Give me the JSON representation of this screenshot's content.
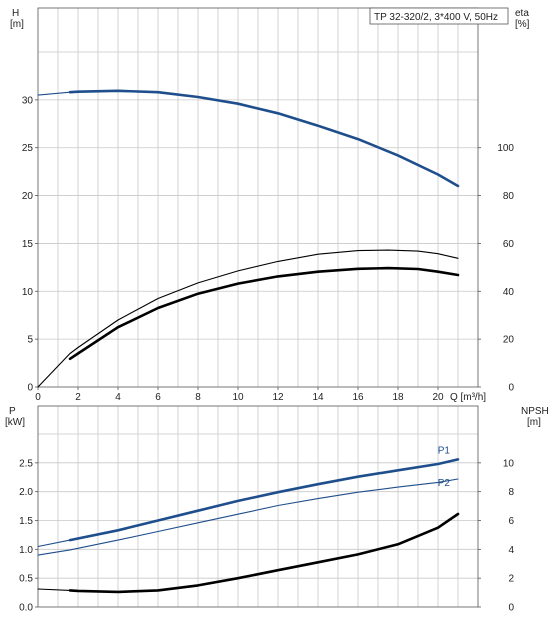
{
  "chart_data": [
    {
      "type": "line",
      "title": "TP 32-320/2, 3*400 V, 50Hz",
      "xlabel": "Q [m³/h]",
      "xlim": [
        0,
        22
      ],
      "x_ticks": [
        "0",
        "2",
        "4",
        "6",
        "8",
        "10",
        "12",
        "14",
        "16",
        "18",
        "20"
      ],
      "ylabel_left": [
        "H",
        "[m]"
      ],
      "ylim_left": [
        0,
        35
      ],
      "y_ticks_left": [
        "0",
        "5",
        "10",
        "15",
        "20",
        "25",
        "30"
      ],
      "ylabel_right": [
        "eta",
        "[%]"
      ],
      "ylim_right": [
        0,
        140
      ],
      "y_ticks_right": [
        "0",
        "20",
        "40",
        "60",
        "80",
        "100"
      ],
      "grid": true,
      "series": [
        {
          "axis": "left",
          "color": "#1f4e8c",
          "style": "thin",
          "x": [
            0,
            1.6
          ],
          "y": [
            30.5,
            30.8
          ]
        },
        {
          "axis": "left",
          "color": "#1f4e8c",
          "style": "thick",
          "x": [
            1.6,
            2,
            4,
            6,
            8,
            10,
            12,
            14,
            16,
            18,
            20,
            21
          ],
          "y": [
            30.8,
            30.85,
            30.95,
            30.8,
            30.3,
            29.6,
            28.6,
            27.3,
            25.9,
            24.2,
            22.2,
            21.0
          ]
        },
        {
          "axis": "right",
          "color": "#000000",
          "style": "thin",
          "x": [
            0,
            1.6,
            2,
            4,
            6,
            8,
            10,
            12,
            14,
            16,
            17.5,
            19,
            20,
            21
          ],
          "y": [
            0,
            14,
            16.5,
            28,
            37,
            43.5,
            48.5,
            52.5,
            55.5,
            57,
            57.2,
            56.8,
            55.7,
            53.8
          ]
        },
        {
          "axis": "right",
          "color": "#000000",
          "style": "thick",
          "x": [
            1.6,
            2,
            4,
            6,
            8,
            10,
            12,
            14,
            16,
            17.5,
            19,
            20,
            21
          ],
          "y": [
            11.8,
            14,
            25,
            33,
            39,
            43.2,
            46.2,
            48.2,
            49.4,
            49.7,
            49.3,
            48.2,
            46.8
          ]
        }
      ]
    },
    {
      "type": "line",
      "xlim": [
        0,
        22
      ],
      "ylabel_left": [
        "P",
        "[kW]"
      ],
      "ylim_left": [
        0,
        3.0
      ],
      "y_ticks_left": [
        "0.0",
        "0.5",
        "1.0",
        "1.5",
        "2.0",
        "2.5"
      ],
      "ylabel_right": [
        "NPSH",
        "[m]"
      ],
      "ylim_right": [
        0,
        12
      ],
      "y_ticks_right": [
        "0",
        "2",
        "4",
        "6",
        "8",
        "10"
      ],
      "grid": true,
      "series": [
        {
          "name": "P1",
          "axis": "left",
          "color": "#1f4e8c",
          "style": "thin",
          "x": [
            0,
            1.6
          ],
          "y": [
            1.05,
            1.16
          ]
        },
        {
          "name": "P1",
          "axis": "left",
          "color": "#1f4e8c",
          "style": "thick",
          "x": [
            1.6,
            4,
            6,
            8,
            10,
            12,
            14,
            16,
            18,
            20,
            21
          ],
          "y": [
            1.16,
            1.33,
            1.5,
            1.67,
            1.84,
            1.99,
            2.13,
            2.26,
            2.37,
            2.48,
            2.56
          ]
        },
        {
          "name": "P2",
          "axis": "left",
          "color": "#1f4e8c",
          "style": "thin",
          "x": [
            0,
            1.6,
            4,
            6,
            8,
            10,
            12,
            14,
            16,
            18,
            20,
            21
          ],
          "y": [
            0.9,
            0.99,
            1.16,
            1.31,
            1.46,
            1.61,
            1.76,
            1.88,
            1.99,
            2.08,
            2.16,
            2.22
          ]
        },
        {
          "axis": "right",
          "color": "#000000",
          "style": "thin",
          "x": [
            0,
            1.6
          ],
          "y": [
            1.25,
            1.15
          ]
        },
        {
          "axis": "right",
          "color": "#000000",
          "style": "thick",
          "x": [
            1.6,
            2,
            4,
            6,
            8,
            10,
            12,
            14,
            16,
            18,
            20,
            21
          ],
          "y": [
            1.15,
            1.12,
            1.05,
            1.15,
            1.5,
            2.0,
            2.55,
            3.1,
            3.65,
            4.35,
            5.5,
            6.45
          ]
        }
      ]
    }
  ]
}
